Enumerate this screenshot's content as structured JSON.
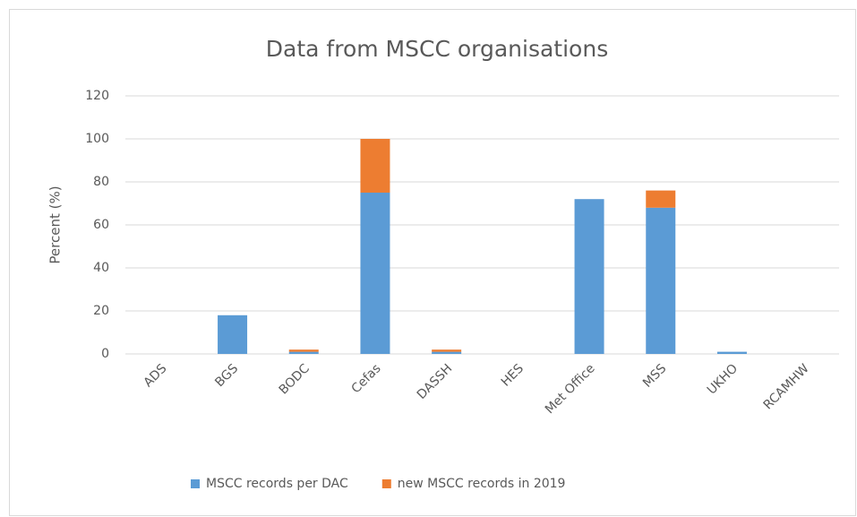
{
  "chart_data": {
    "type": "stacked_bar",
    "title": "Data from MSCC organisations",
    "y_label": "Percent (%)",
    "categories": [
      "ADS",
      "BGS",
      "BODC",
      "Cefas",
      "DASSH",
      "HES",
      "Met Office",
      "MSS",
      "UKHO",
      "RCAMHW"
    ],
    "series": [
      {
        "name": "MSCC records per DAC",
        "color": "#5b9bd5",
        "values": [
          0,
          18,
          1,
          75,
          1,
          0,
          72,
          68,
          1,
          0
        ]
      },
      {
        "name": "new MSCC records in 2019",
        "color": "#ed7d31",
        "values": [
          0,
          0,
          1,
          25,
          1,
          0,
          0,
          8,
          0,
          0
        ]
      }
    ],
    "ylim": [
      0,
      120
    ],
    "yticks": [
      0,
      20,
      40,
      60,
      80,
      100,
      120
    ],
    "grid": true,
    "legend": "bottom"
  }
}
